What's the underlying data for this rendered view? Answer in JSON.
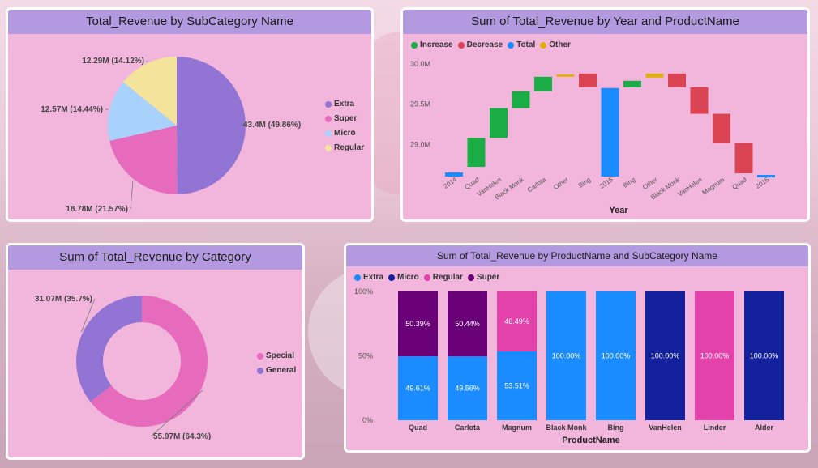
{
  "colors": {
    "extra": "#9174d3",
    "super": "#e76bbd",
    "micro": "#a8d2fc",
    "regular": "#f3e39b",
    "special": "#e76bbd",
    "general": "#9174d3",
    "increase": "#1aad45",
    "decrease": "#da4452",
    "total": "#1a8cff",
    "other": "#e0b010",
    "stack_extra": "#1a8cff",
    "stack_micro": "#14219c",
    "stack_regular": "#e242aa",
    "stack_super": "#6a0078"
  },
  "pie_panel": {
    "title": "Total_Revenue by SubCategory Name",
    "legend": [
      "Extra",
      "Super",
      "Micro",
      "Regular"
    ],
    "chart_data": {
      "type": "pie",
      "slices": [
        {
          "label": "Extra",
          "value": 43.4,
          "data_label": "43.4M (49.86%)"
        },
        {
          "label": "Super",
          "value": 18.78,
          "data_label": "18.78M (21.57%)"
        },
        {
          "label": "Micro",
          "value": 12.57,
          "data_label": "12.57M (14.44%)"
        },
        {
          "label": "Regular",
          "value": 12.29,
          "data_label": "12.29M (14.12%)"
        }
      ]
    }
  },
  "waterfall_panel": {
    "title": "Sum of Total_Revenue by Year and ProductName",
    "legend": [
      "Increase",
      "Decrease",
      "Total",
      "Other"
    ],
    "xlabel": "Year",
    "chart_data": {
      "type": "bar",
      "subtype": "waterfall",
      "ylim": [
        28.6,
        30.05
      ],
      "yticks": [
        {
          "v": 30.0,
          "label": "30.0M"
        },
        {
          "v": 29.5,
          "label": "29.5M"
        },
        {
          "v": 29.0,
          "label": "29.0M"
        }
      ],
      "bars": [
        {
          "cat": "2014",
          "kind": "total",
          "start": 28.6,
          "end": 28.65
        },
        {
          "cat": "Quad",
          "kind": "increase",
          "start": 28.72,
          "end": 29.08
        },
        {
          "cat": "VanHelen",
          "kind": "increase",
          "start": 29.08,
          "end": 29.45
        },
        {
          "cat": "Black Monk",
          "kind": "increase",
          "start": 29.45,
          "end": 29.66
        },
        {
          "cat": "Carlota",
          "kind": "increase",
          "start": 29.66,
          "end": 29.84
        },
        {
          "cat": "Other",
          "kind": "other",
          "start": 29.84,
          "end": 29.87
        },
        {
          "cat": "Bing",
          "kind": "decrease",
          "start": 29.88,
          "end": 29.71
        },
        {
          "cat": "2015",
          "kind": "total",
          "start": 28.6,
          "end": 29.7
        },
        {
          "cat": "Bing",
          "kind": "increase",
          "start": 29.71,
          "end": 29.79
        },
        {
          "cat": "Other",
          "kind": "other",
          "start": 29.88,
          "end": 29.83
        },
        {
          "cat": "Black Monk",
          "kind": "decrease",
          "start": 29.88,
          "end": 29.71
        },
        {
          "cat": "VanHelen",
          "kind": "decrease",
          "start": 29.71,
          "end": 29.38
        },
        {
          "cat": "Magnum",
          "kind": "decrease",
          "start": 29.38,
          "end": 29.02
        },
        {
          "cat": "Quad",
          "kind": "decrease",
          "start": 29.02,
          "end": 28.64
        },
        {
          "cat": "2016",
          "kind": "total",
          "start": 28.6,
          "end": 28.62
        }
      ]
    }
  },
  "donut_panel": {
    "title": "Sum of Total_Revenue by Category",
    "legend": [
      "Special",
      "General"
    ],
    "chart_data": {
      "type": "pie",
      "subtype": "donut",
      "slices": [
        {
          "label": "Special",
          "value": 55.97,
          "data_label": "55.97M (64.3%)"
        },
        {
          "label": "General",
          "value": 31.07,
          "data_label": "31.07M (35.7%)"
        }
      ]
    }
  },
  "stacked_panel": {
    "title": "Sum of Total_Revenue by ProductName and SubCategory Name",
    "legend": [
      "Extra",
      "Micro",
      "Regular",
      "Super"
    ],
    "xlabel": "ProductName",
    "chart_data": {
      "type": "bar",
      "subtype": "100%-stacked",
      "yticks": [
        "100%",
        "50%",
        "0%"
      ],
      "categories": [
        "Quad",
        "Carlota",
        "Magnum",
        "Black Monk",
        "Bing",
        "VanHelen",
        "Linder",
        "Alder"
      ],
      "series": [
        {
          "name": "Extra",
          "values": [
            49.61,
            49.56,
            53.51,
            100,
            100,
            0,
            0,
            0
          ],
          "labels": [
            "49.61%",
            "49.56%",
            "53.51%",
            "100.00%",
            "100.00%",
            "",
            "",
            ""
          ]
        },
        {
          "name": "Micro",
          "values": [
            0,
            0,
            0,
            0,
            0,
            100,
            0,
            100
          ],
          "labels": [
            "",
            "",
            "",
            "",
            "",
            "100.00%",
            "",
            "100.00%"
          ]
        },
        {
          "name": "Regular",
          "values": [
            0,
            0,
            46.49,
            0,
            0,
            0,
            100,
            0
          ],
          "labels": [
            "",
            "",
            "46.49%",
            "",
            "",
            "",
            "100.00%",
            ""
          ]
        },
        {
          "name": "Super",
          "values": [
            50.39,
            50.44,
            0,
            0,
            0,
            0,
            0,
            0
          ],
          "labels": [
            "50.39%",
            "50.44%",
            "",
            "",
            "",
            "",
            "",
            ""
          ]
        }
      ]
    }
  }
}
